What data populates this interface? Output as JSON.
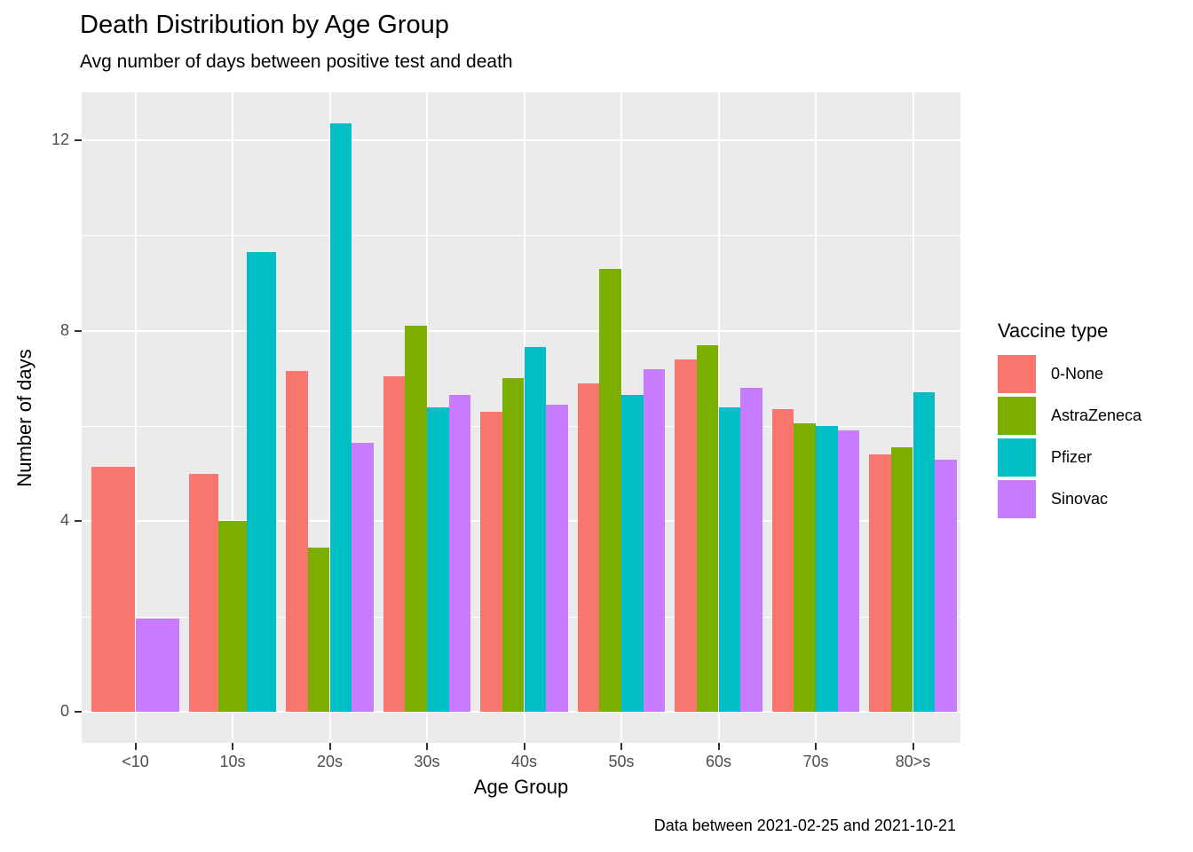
{
  "title": "Death Distribution by Age Group",
  "subtitle": "Avg number of days between positive test and death",
  "caption": "Data between 2021-02-25 and 2021-10-21",
  "legend": {
    "title": "Vaccine type",
    "position": "right",
    "entries": [
      "0-None",
      "AstraZeneca",
      "Pfizer",
      "Sinovac"
    ]
  },
  "chart_data": {
    "type": "bar",
    "mode": "grouped-dodge",
    "title": "Death Distribution by Age Group",
    "subtitle": "Avg number of days between positive test and death",
    "caption": "Data between 2021-02-25 and 2021-10-21",
    "xlabel": "Age Group",
    "ylabel": "Number of days",
    "categories": [
      "<10",
      "10s",
      "20s",
      "30s",
      "40s",
      "50s",
      "60s",
      "70s",
      "80>s"
    ],
    "yticks": [
      0,
      4,
      8,
      12
    ],
    "ytick_labels": [
      "0",
      "4",
      "8",
      "12"
    ],
    "minor_gridlines": [
      2,
      6,
      10
    ],
    "ylim": [
      0,
      13
    ],
    "grid": true,
    "legend_title": "Vaccine type",
    "series": [
      {
        "name": "0-None",
        "color": "#F8766D",
        "values": [
          5.15,
          5.0,
          7.15,
          7.05,
          6.3,
          6.9,
          7.4,
          6.35,
          5.4
        ]
      },
      {
        "name": "AstraZeneca",
        "color": "#7CAE00",
        "values": [
          null,
          4.0,
          3.45,
          8.1,
          7.0,
          9.3,
          7.7,
          6.05,
          5.55
        ]
      },
      {
        "name": "Pfizer",
        "color": "#00BFC4",
        "values": [
          null,
          9.65,
          12.35,
          6.4,
          7.65,
          6.65,
          6.4,
          6.0,
          6.7
        ]
      },
      {
        "name": "Sinovac",
        "color": "#C77CFF",
        "values": [
          1.95,
          null,
          5.65,
          6.65,
          6.45,
          7.2,
          6.8,
          5.9,
          5.3
        ]
      }
    ]
  },
  "colors": {
    "panel_background": "#EBEBEB",
    "gridline": "#FFFFFF",
    "tick_text": "#4D4D4D",
    "tick_mark": "#333333",
    "text": "#000000"
  }
}
